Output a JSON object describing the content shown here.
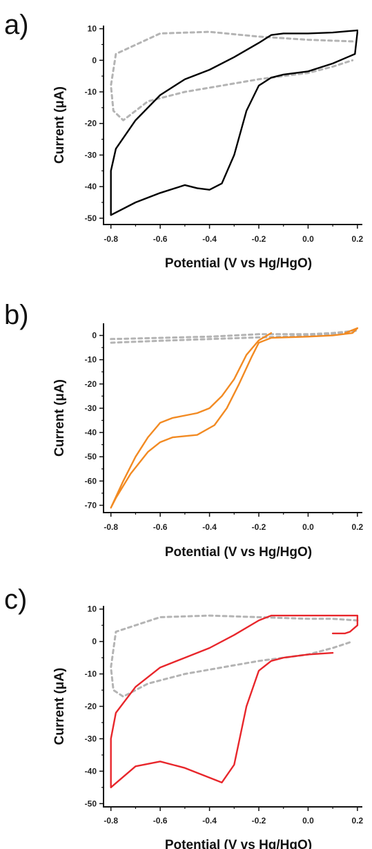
{
  "chart_data": [
    {
      "type": "line",
      "panel_label": "a)",
      "xlabel": "Potential (V vs Hg/HgO)",
      "ylabel": "Current (μA)",
      "xlim": [
        -0.83,
        0.22
      ],
      "ylim": [
        -52,
        11
      ],
      "xticks": [
        -0.8,
        -0.6,
        -0.4,
        -0.2,
        0.0,
        0.2
      ],
      "xtick_labels": [
        "-0.8",
        "-0.6",
        "-0.4",
        "-0.2",
        "0.0",
        "0.2"
      ],
      "yticks": [
        10,
        0,
        -10,
        -20,
        -30,
        -40,
        -50
      ],
      "ytick_labels": [
        "10",
        "0",
        "-10",
        "-20",
        "-30",
        "-40",
        "-50"
      ],
      "series": [
        {
          "style": "dashed",
          "color": "#b4b4b4",
          "x": [
            0.18,
            0.0,
            -0.2,
            -0.4,
            -0.6,
            -0.78,
            -0.8,
            -0.79,
            -0.75,
            -0.65,
            -0.5,
            -0.35,
            -0.2,
            -0.1,
            0.0,
            0.1,
            0.18
          ],
          "y": [
            6,
            6.5,
            7.5,
            9,
            8.5,
            2,
            -8,
            -16,
            -19,
            -13,
            -10,
            -8,
            -6,
            -5,
            -4,
            -2,
            0
          ]
        },
        {
          "style": "solid",
          "color": "#000000",
          "x": [
            0.2,
            0.19,
            0.1,
            0.0,
            -0.1,
            -0.15,
            -0.2,
            -0.25,
            -0.3,
            -0.35,
            -0.4,
            -0.45,
            -0.5,
            -0.6,
            -0.7,
            -0.8,
            -0.8,
            -0.78,
            -0.7,
            -0.6,
            -0.5,
            -0.4,
            -0.3,
            -0.2,
            -0.15,
            -0.1,
            0.0,
            0.1,
            0.2
          ],
          "y": [
            9,
            2,
            -1,
            -3.5,
            -4.5,
            -5.5,
            -8,
            -16,
            -30,
            -39,
            -41,
            -40.5,
            -39.5,
            -42,
            -45,
            -49,
            -35,
            -28,
            -19,
            -11,
            -6,
            -3,
            1,
            5.5,
            8,
            8.5,
            8.5,
            8.8,
            9.5
          ]
        }
      ]
    },
    {
      "type": "line",
      "panel_label": "b)",
      "xlabel": "Potential (V vs Hg/HgO)",
      "ylabel": "Current (μA)",
      "xlim": [
        -0.83,
        0.22
      ],
      "ylim": [
        -73,
        5
      ],
      "xticks": [
        -0.8,
        -0.6,
        -0.4,
        -0.2,
        0.0,
        0.2
      ],
      "xtick_labels": [
        "-0.8",
        "-0.6",
        "-0.4",
        "-0.2",
        "0.0",
        "0.2"
      ],
      "yticks": [
        0,
        -10,
        -20,
        -30,
        -40,
        -50,
        -60,
        -70
      ],
      "ytick_labels": [
        "0",
        "-10",
        "-20",
        "-30",
        "-40",
        "-50",
        "-60",
        "-70"
      ],
      "series": [
        {
          "style": "dashed",
          "color": "#b4b4b4",
          "x": [
            -0.8,
            -0.6,
            -0.4,
            -0.2,
            0.0,
            0.1,
            0.2,
            0.1,
            0.0,
            -0.2,
            -0.4,
            -0.6,
            -0.8
          ],
          "y": [
            -1.5,
            -1,
            -0.5,
            0.5,
            0.5,
            1,
            2,
            0.5,
            -0.2,
            -0.8,
            -1.5,
            -2.2,
            -3
          ]
        },
        {
          "style": "solid",
          "color": "#f28a22",
          "x": [
            -0.15,
            -0.2,
            -0.25,
            -0.3,
            -0.35,
            -0.4,
            -0.45,
            -0.5,
            -0.55,
            -0.6,
            -0.65,
            -0.7,
            -0.75,
            -0.8,
            -0.78,
            -0.72,
            -0.65,
            -0.6,
            -0.55,
            -0.45,
            -0.38,
            -0.33,
            -0.28,
            -0.23,
            -0.2,
            -0.15,
            0.0,
            0.1,
            0.18,
            0.2,
            0.15
          ],
          "y": [
            1,
            -2,
            -8,
            -18,
            -25,
            -30,
            -32,
            -33,
            -34,
            -36,
            -42,
            -50,
            -60,
            -71,
            -67,
            -57,
            -48,
            -44,
            -42,
            -41,
            -37,
            -30,
            -20,
            -9,
            -3,
            -1,
            -0.5,
            0,
            1,
            3,
            1
          ]
        }
      ]
    },
    {
      "type": "line",
      "panel_label": "c)",
      "xlabel": "Potential (V vs Hg/HgO)",
      "ylabel": "Current (μA)",
      "xlim": [
        -0.83,
        0.22
      ],
      "ylim": [
        -51,
        11
      ],
      "xticks": [
        -0.8,
        -0.6,
        -0.4,
        -0.2,
        0.0,
        0.2
      ],
      "xtick_labels": [
        "-0.8",
        "-0.6",
        "-0.4",
        "-0.2",
        "0.0",
        "0.2"
      ],
      "yticks": [
        10,
        0,
        -10,
        -20,
        -30,
        -40,
        -50
      ],
      "ytick_labels": [
        "10",
        "0",
        "-10",
        "-20",
        "-30",
        "-40",
        "-50"
      ],
      "series": [
        {
          "style": "dashed",
          "color": "#b4b4b4",
          "x": [
            0.2,
            0.1,
            0.0,
            -0.2,
            -0.4,
            -0.6,
            -0.78,
            -0.8,
            -0.79,
            -0.75,
            -0.65,
            -0.5,
            -0.35,
            -0.2,
            -0.1,
            0.0,
            0.1,
            0.18
          ],
          "y": [
            6.5,
            7,
            7,
            7.5,
            8,
            7.5,
            3,
            -8,
            -15,
            -17,
            -13,
            -10,
            -8,
            -6,
            -5,
            -4,
            -2,
            0
          ]
        },
        {
          "style": "solid",
          "color": "#e8262b",
          "x": [
            0.1,
            0.0,
            -0.1,
            -0.15,
            -0.2,
            -0.25,
            -0.3,
            -0.35,
            -0.4,
            -0.5,
            -0.6,
            -0.7,
            -0.8,
            -0.8,
            -0.78,
            -0.7,
            -0.6,
            -0.5,
            -0.4,
            -0.3,
            -0.2,
            -0.15,
            -0.1,
            0.0,
            0.1,
            0.2,
            0.2,
            0.17,
            0.15,
            0.1
          ],
          "y": [
            -3.5,
            -4,
            -5,
            -6,
            -9,
            -20,
            -38,
            -43.5,
            -42,
            -39,
            -37,
            -38.5,
            -45,
            -30,
            -22,
            -14,
            -8,
            -5,
            -2,
            2,
            6.5,
            8,
            8,
            8,
            8,
            8,
            5,
            3,
            2.5,
            2.5
          ]
        }
      ]
    }
  ]
}
